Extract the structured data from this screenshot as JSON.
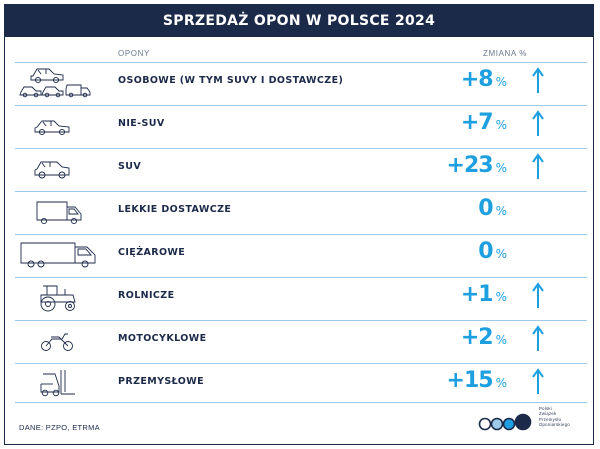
{
  "title": "SPRZEDAŻ OPON W POLSCE 2024",
  "columns": {
    "tires": "OPONY",
    "change": "ZMIANA %"
  },
  "colors": {
    "navy": "#1c2a4a",
    "accent": "#1e9fe0",
    "row_line": "#9ccae8"
  },
  "rows": [
    {
      "label": "OSOBOWE (W TYM SUVY I DOSTAWCZE)",
      "value": "+8",
      "unit": "%",
      "arrow": "up",
      "icon": "passenger-cars-group-icon"
    },
    {
      "label": "NIE-SUV",
      "value": "+7",
      "unit": "%",
      "arrow": "up",
      "icon": "sedan-car-icon"
    },
    {
      "label": "SUV",
      "value": "+23",
      "unit": "%",
      "arrow": "up",
      "icon": "suv-car-icon"
    },
    {
      "label": "LEKKIE DOSTAWCZE",
      "value": "0",
      "unit": "%",
      "arrow": "none",
      "icon": "van-icon"
    },
    {
      "label": "CIĘŻAROWE",
      "value": "0",
      "unit": "%",
      "arrow": "none",
      "icon": "truck-icon"
    },
    {
      "label": "ROLNICZE",
      "value": "+1",
      "unit": "%",
      "arrow": "up",
      "icon": "tractor-icon"
    },
    {
      "label": "MOTOCYKLOWE",
      "value": "+2",
      "unit": "%",
      "arrow": "up",
      "icon": "motorcycle-icon"
    },
    {
      "label": "PRZEMYSŁOWE",
      "value": "+15",
      "unit": "%",
      "arrow": "up",
      "icon": "forklift-icon"
    }
  ],
  "source": "DANE: PZPO, ETRMA",
  "logo": {
    "words": [
      "Polski",
      "Związek",
      "Przemysłu",
      "Oponiarskiego"
    ],
    "circle_colors": [
      "#ffffff",
      "#9ccae8",
      "#1e9fe0",
      "#1c2a4a"
    ]
  }
}
